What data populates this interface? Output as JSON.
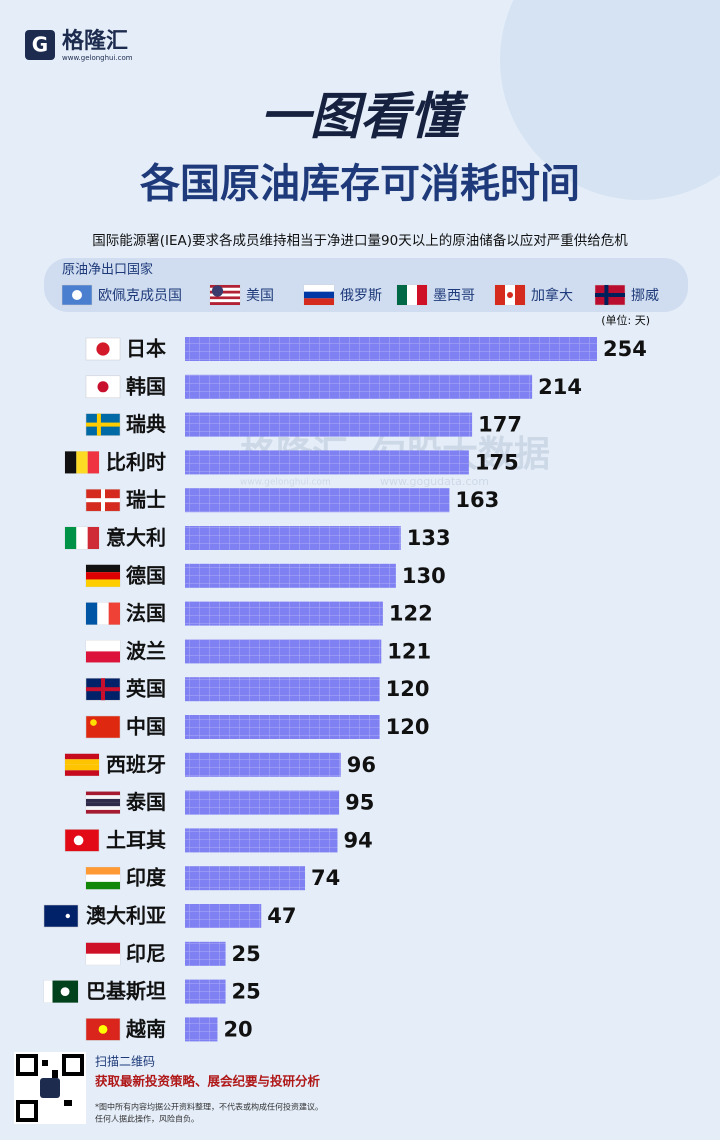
{
  "header": {
    "logo": "格隆汇",
    "url": "www.gelonghui.com",
    "title": "一图看懂",
    "subtitle": "各国原油库存可消耗时间",
    "note": "国际能源署(IEA)要求各成员维持相当于净进口量90天以上的原油储备以应对严重供给危机"
  },
  "legend": {
    "title": "原油净出口国家",
    "items": [
      "欧佩克成员国",
      "美国",
      "俄罗斯",
      "墨西哥",
      "加拿大",
      "挪威"
    ]
  },
  "chart_data": {
    "type": "bar",
    "orientation": "horizontal",
    "unit": "(单位: 天)",
    "categories": [
      "日本",
      "韩国",
      "瑞典",
      "比利时",
      "瑞士",
      "意大利",
      "德国",
      "法国",
      "波兰",
      "英国",
      "中国",
      "西班牙",
      "泰国",
      "土耳其",
      "印度",
      "澳大利亚",
      "印尼",
      "巴基斯坦",
      "越南"
    ],
    "values": [
      254,
      214,
      177,
      175,
      163,
      133,
      130,
      122,
      121,
      120,
      120,
      96,
      95,
      94,
      74,
      47,
      25,
      25,
      20
    ],
    "color": "#7f80f2"
  },
  "watermark": {
    "brand": "格隆汇",
    "brand_url": "www.gelonghui.com",
    "data": "勾股大数据",
    "data_url": "www.gogudata.com"
  },
  "footer": {
    "scan": "扫描二维码",
    "cta": "获取最新投资策略、展会纪要与投研分析",
    "disclaimer": [
      "*图中所有内容均据公开资料整理，不代表或构成任何投资建议。",
      "任何人据此操作，风险自负。"
    ]
  }
}
